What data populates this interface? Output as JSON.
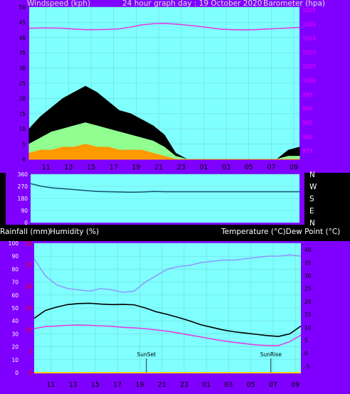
{
  "colors": {
    "background": "#000000",
    "frame": "#8000ff",
    "plot": "#80ffff",
    "grid": "#6fd8d8",
    "wind_gust": "#000000",
    "wind_speed": "#90ff90",
    "wind_low": "#ff9900",
    "barometer": "#e040e0",
    "direction": "#1a5a7a",
    "temperature": "#000000",
    "dewpoint": "#e040e0",
    "humidity": "#9090ff",
    "rain": "#ff0000",
    "sun_marker": "#000000"
  },
  "header": {
    "left": "Windspeed (kph)",
    "center": "24 hour graph day : 19 October 2020",
    "right": "Barometer (hpa)"
  },
  "middle": {
    "right_labels": [
      "N",
      "W",
      "S",
      "E",
      "N"
    ]
  },
  "lower_header": {
    "left_a": "Rainfall (mm)",
    "left_b": "Humidity (%)",
    "right": "Temperature (°C)Dew Point (°C)"
  },
  "x_ticks": [
    "11",
    "13",
    "15",
    "17",
    "19",
    "21",
    "23",
    "01",
    "03",
    "05",
    "07",
    "09"
  ],
  "chart_data": [
    {
      "type": "line",
      "name": "wind_barometer",
      "x": [
        9.5,
        10.5,
        11.5,
        12.5,
        13.5,
        14.5,
        15.5,
        16.5,
        17.5,
        18.5,
        19.5,
        20.5,
        21.5,
        22.5,
        23.5,
        24.5,
        25.5,
        26.5,
        27.5,
        28.5,
        29.5,
        30.5,
        31.5,
        32.5,
        33.5
      ],
      "xlim": [
        9.5,
        33.5
      ],
      "left_axis": {
        "ticks": [
          0,
          5,
          10,
          15,
          20,
          25,
          30,
          35,
          40,
          45,
          50
        ],
        "ylim": [
          0,
          50
        ]
      },
      "right_axis": {
        "ticks": [
          975,
          980,
          985,
          990,
          995,
          1000,
          1005,
          1010,
          1015,
          1020,
          1025
        ],
        "ylim": [
          972,
          1026
        ]
      },
      "series": [
        {
          "key": "gust",
          "values": [
            10,
            14,
            17,
            20,
            22,
            24,
            22,
            19,
            16,
            15,
            13,
            11,
            8,
            2,
            0,
            0,
            0,
            0,
            0,
            0,
            0,
            0,
            0,
            3,
            4
          ]
        },
        {
          "key": "speed",
          "values": [
            5,
            7,
            9,
            10,
            11,
            12,
            11,
            10,
            9,
            8,
            7,
            6,
            4,
            1,
            0,
            0,
            0,
            0,
            0,
            0,
            0,
            0,
            0,
            1,
            1
          ]
        },
        {
          "key": "low",
          "values": [
            2,
            3,
            3,
            4,
            4,
            5,
            4,
            4,
            3,
            3,
            3,
            2,
            1,
            0,
            0,
            0,
            0,
            0,
            0,
            0,
            0,
            0,
            0,
            0,
            0
          ]
        },
        {
          "key": "barometer",
          "values": [
            1018.5,
            1018.6,
            1018.6,
            1018.5,
            1018.2,
            1018.0,
            1018.0,
            1018.1,
            1018.3,
            1018.9,
            1019.7,
            1020.1,
            1020.2,
            1020.0,
            1019.6,
            1019.2,
            1018.7,
            1018.2,
            1018.0,
            1017.9,
            1018.0,
            1018.2,
            1018.4,
            1018.6,
            1018.8
          ]
        }
      ]
    },
    {
      "type": "line",
      "name": "wind_direction",
      "x": [
        9.5,
        10.5,
        11.5,
        12.5,
        13.5,
        14.5,
        15.5,
        16.5,
        17.5,
        18.5,
        19.5,
        20.5,
        21.5,
        22.5,
        23.5,
        24.5,
        25.5,
        26.5,
        27.5,
        28.5,
        29.5,
        30.5,
        31.5,
        32.5,
        33.5
      ],
      "xlim": [
        9.5,
        33.5
      ],
      "ylim": [
        0,
        360
      ],
      "ticks": [
        0,
        90,
        180,
        270,
        360
      ],
      "series": [
        {
          "key": "direction",
          "values": [
            290,
            270,
            258,
            252,
            245,
            238,
            232,
            230,
            228,
            226,
            228,
            232,
            230,
            230,
            230,
            230,
            230,
            230,
            230,
            230,
            230,
            230,
            230,
            230,
            230
          ]
        }
      ]
    },
    {
      "type": "line",
      "name": "temp_humidity",
      "x": [
        9.5,
        10.5,
        11.5,
        12.5,
        13.5,
        14.5,
        15.5,
        16.5,
        17.5,
        18.5,
        19.5,
        20.5,
        21.5,
        22.5,
        23.5,
        24.5,
        25.5,
        26.5,
        27.5,
        28.5,
        29.5,
        30.5,
        31.5,
        32.5,
        33.5
      ],
      "xlim": [
        9.5,
        33.5
      ],
      "humidity_axis": {
        "ticks": [
          0,
          10,
          20,
          30,
          40,
          50,
          60,
          70,
          80,
          90,
          100
        ],
        "ylim": [
          0,
          100
        ]
      },
      "rain_axis": {
        "ticks": [
          0,
          5,
          10,
          15,
          20,
          25,
          30
        ],
        "ylim": [
          0,
          30
        ]
      },
      "temp_axis": {
        "ticks": [
          -5,
          0,
          5,
          10,
          15,
          20,
          25,
          30,
          35,
          40
        ],
        "ylim": [
          -7.5,
          42.5
        ]
      },
      "series": [
        {
          "key": "temperature",
          "values": [
            13.5,
            16.5,
            17.8,
            18.8,
            19.2,
            19.3,
            19.0,
            18.8,
            18.9,
            18.7,
            17.5,
            16.0,
            15.0,
            13.8,
            12.5,
            11.0,
            10.0,
            9.0,
            8.3,
            7.8,
            7.3,
            6.8,
            6.5,
            7.5,
            10.5
          ]
        },
        {
          "key": "dewpoint",
          "values": [
            9.5,
            10.3,
            10.5,
            10.8,
            10.9,
            10.8,
            10.6,
            10.4,
            10.0,
            9.8,
            9.5,
            9.0,
            8.5,
            7.8,
            7.0,
            6.3,
            5.5,
            4.8,
            4.2,
            3.7,
            3.2,
            3.0,
            3.0,
            4.5,
            7.0
          ]
        },
        {
          "key": "humidity",
          "values": [
            88,
            75,
            68,
            65,
            64,
            63,
            65,
            64,
            62,
            63,
            70,
            75,
            80,
            82,
            83,
            85,
            86,
            87,
            87,
            88,
            89,
            90,
            90,
            91,
            90
          ]
        },
        {
          "key": "rain",
          "values": [
            0,
            0,
            0,
            0,
            0,
            0,
            0,
            0,
            0,
            0,
            0,
            0,
            0,
            0,
            0,
            0,
            0,
            0,
            0,
            0,
            0,
            0,
            0,
            0,
            0
          ]
        }
      ],
      "annotations": [
        {
          "text": "SunSet",
          "x": 19.6
        },
        {
          "text": "SunRise",
          "x": 30.8
        }
      ]
    }
  ]
}
